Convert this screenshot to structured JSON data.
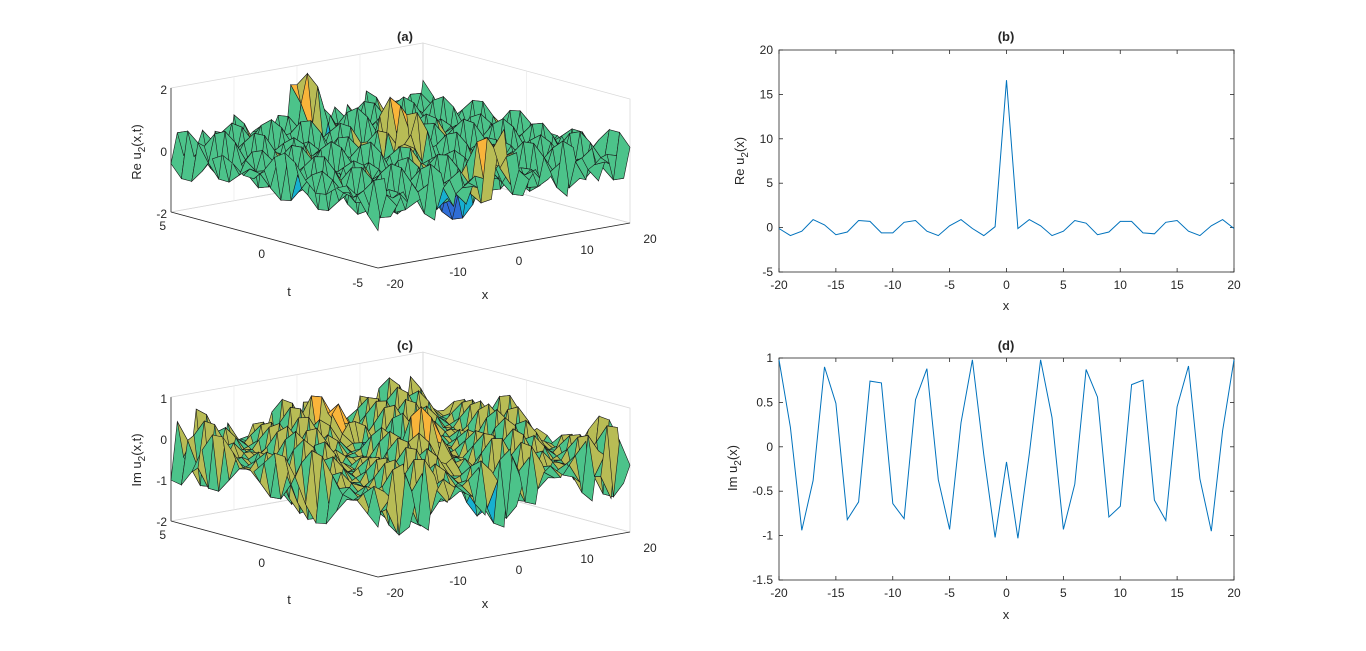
{
  "figure": {
    "panels": [
      {
        "id": "a",
        "title": "(a)",
        "zlabel": "Re u",
        "zlabel_sub": "2",
        "zlabel_tail": "(x,t)",
        "xlabel": "x",
        "ylabel": "t",
        "zticks": [
          "2",
          "0",
          "-2"
        ],
        "tticks": [
          "5",
          "0",
          "-5"
        ],
        "xticks": [
          "-20",
          "-10",
          "0",
          "10",
          "20"
        ]
      },
      {
        "id": "c",
        "title": "(c)",
        "zlabel": "Im u",
        "zlabel_sub": "2",
        "zlabel_tail": "(x,t)",
        "xlabel": "x",
        "ylabel": "t",
        "zticks": [
          "1",
          "0",
          "-1",
          "-2"
        ],
        "tticks": [
          "5",
          "0",
          "-5"
        ],
        "xticks": [
          "-20",
          "-10",
          "0",
          "10",
          "20"
        ]
      }
    ]
  },
  "chart_data": [
    {
      "type": "surface",
      "title": "(a)",
      "xlabel": "x",
      "ylabel": "t",
      "zlabel": "Re u2(x,t)",
      "xlim": [
        -20,
        20
      ],
      "ylim": [
        -5,
        5
      ],
      "zlim": [
        -2,
        2
      ],
      "colormap": [
        "#3e26a8",
        "#2f6dd6",
        "#17b0d0",
        "#4cc38a",
        "#b8bc55",
        "#f9b43a",
        "#f9fb0e"
      ]
    },
    {
      "type": "line",
      "title": "(b)",
      "xlabel": "x",
      "ylabel": "Re u",
      "ylabel_sub": "2",
      "ylabel_tail": "(x)",
      "xlim": [
        -20,
        20
      ],
      "ylim": [
        -5,
        20
      ],
      "xticks": [
        "-20",
        "-15",
        "-10",
        "-5",
        "0",
        "5",
        "10",
        "15",
        "20"
      ],
      "yticks": [
        "-5",
        "0",
        "5",
        "10",
        "15",
        "20"
      ],
      "color": "#0072bd",
      "x": [
        -20,
        -19,
        -18,
        -17,
        -16,
        -15,
        -14,
        -13,
        -12,
        -11,
        -10,
        -9,
        -8,
        -7,
        -6,
        -5,
        -4,
        -3,
        -2,
        -1,
        0,
        1,
        2,
        3,
        4,
        5,
        6,
        7,
        8,
        9,
        10,
        11,
        12,
        13,
        14,
        15,
        16,
        17,
        18,
        19,
        20
      ],
      "y": [
        -0.1,
        -0.9,
        -0.4,
        0.9,
        0.3,
        -0.8,
        -0.5,
        0.8,
        0.7,
        -0.6,
        -0.6,
        0.6,
        0.8,
        -0.4,
        -0.9,
        0.2,
        0.9,
        -0.1,
        -0.9,
        0.1,
        16.6,
        -0.1,
        0.9,
        0.2,
        -0.9,
        -0.4,
        0.8,
        0.5,
        -0.8,
        -0.5,
        0.7,
        0.7,
        -0.6,
        -0.7,
        0.6,
        0.8,
        -0.4,
        -0.9,
        0.2,
        0.9,
        -0.1
      ]
    },
    {
      "type": "surface",
      "title": "(c)",
      "xlabel": "x",
      "ylabel": "t",
      "zlabel": "Im u2(x,t)",
      "xlim": [
        -20,
        20
      ],
      "ylim": [
        -5,
        5
      ],
      "zlim": [
        -2,
        1
      ],
      "colormap": [
        "#3e26a8",
        "#2f6dd6",
        "#17b0d0",
        "#4cc38a",
        "#b8bc55",
        "#f9b43a",
        "#f9fb0e"
      ]
    },
    {
      "type": "line",
      "title": "(d)",
      "xlabel": "x",
      "ylabel": "Im u",
      "ylabel_sub": "2",
      "ylabel_tail": "(x)",
      "xlim": [
        -20,
        20
      ],
      "ylim": [
        -1.5,
        1
      ],
      "xticks": [
        "-20",
        "-15",
        "-10",
        "-5",
        "0",
        "5",
        "10",
        "15",
        "20"
      ],
      "yticks": [
        "-1.5",
        "-1",
        "-0.5",
        "0",
        "0.5",
        "1"
      ],
      "color": "#0072bd",
      "x": [
        -20,
        -19,
        -18,
        -17,
        -16,
        -15,
        -14,
        -13,
        -12,
        -11,
        -10,
        -9,
        -8,
        -7,
        -6,
        -5,
        -4,
        -3,
        -2,
        -1,
        0,
        1,
        2,
        3,
        4,
        5,
        6,
        7,
        8,
        9,
        10,
        11,
        12,
        13,
        14,
        15,
        16,
        17,
        18,
        19,
        20
      ],
      "y": [
        0.98,
        0.22,
        -0.94,
        -0.38,
        0.9,
        0.49,
        -0.82,
        -0.62,
        0.74,
        0.72,
        -0.64,
        -0.81,
        0.53,
        0.88,
        -0.37,
        -0.93,
        0.27,
        0.98,
        -0.09,
        -1.02,
        -0.17,
        -1.03,
        -0.08,
        0.98,
        0.33,
        -0.93,
        -0.42,
        0.87,
        0.56,
        -0.79,
        -0.67,
        0.7,
        0.75,
        -0.6,
        -0.83,
        0.45,
        0.91,
        -0.36,
        -0.95,
        0.18,
        0.98
      ]
    }
  ]
}
